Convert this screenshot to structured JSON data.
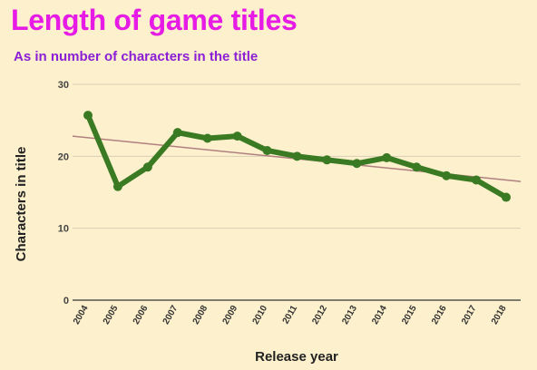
{
  "chart_data": {
    "type": "line",
    "title": "Length of game titles",
    "subtitle": "As in number of characters in the title",
    "xlabel": "Release year",
    "ylabel": "Characters in title",
    "categories": [
      "2004",
      "2005",
      "2006",
      "2007",
      "2008",
      "2009",
      "2010",
      "2011",
      "2012",
      "2013",
      "2014",
      "2015",
      "2016",
      "2017",
      "2018"
    ],
    "series": [
      {
        "values": [
          25.7,
          15.8,
          18.5,
          23.3,
          22.5,
          22.8,
          20.8,
          20.0,
          19.5,
          19.0,
          19.8,
          18.5,
          17.3,
          16.7,
          14.3
        ]
      }
    ],
    "trendline": {
      "start": 22.8,
      "end": 16.5
    },
    "ylim": [
      0,
      30
    ],
    "yticks": [
      0,
      10,
      20,
      30
    ],
    "grid": true,
    "colors": {
      "line": "#3a7a22",
      "trendline": "#b08080",
      "grid": "#d8cfb8",
      "title": "#e61ce6",
      "subtitle": "#8b1fd6"
    }
  }
}
